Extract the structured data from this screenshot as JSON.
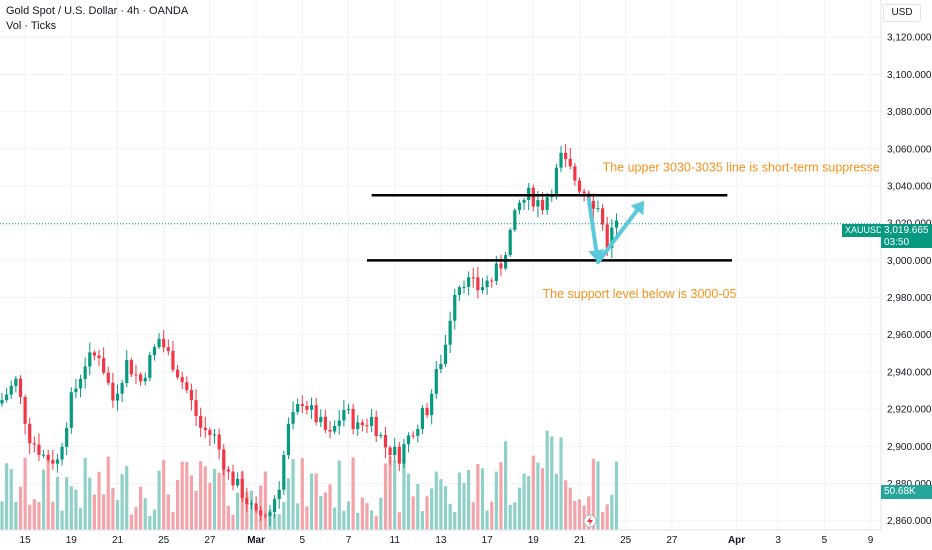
{
  "header": {
    "title": "Gold Spot / U.S. Dollar · 4h · OANDA",
    "indicator": "Vol · Ticks"
  },
  "currency_button": "USD",
  "last_price": {
    "symbol": "XAUUSD",
    "value": "3,019.665",
    "countdown": "03:50"
  },
  "volume_readout": "50.68K",
  "colors": {
    "up": "#089981",
    "down": "#f23645",
    "vol_up": "#8fd0c8",
    "vol_down": "#f4a3a8",
    "annotation_text": "#f7931a",
    "arrow": "#5bc9dc",
    "level_line": "#000000"
  },
  "chart_data": {
    "type": "candlestick",
    "symbol": "XAUUSD",
    "timeframe": "4h",
    "ylim": [
      2855,
      3140
    ],
    "y_ticks": [
      2860,
      2880,
      2900,
      2920,
      2940,
      2960,
      2980,
      3000,
      3020,
      3040,
      3060,
      3080,
      3100,
      3120
    ],
    "y_tick_labels": [
      "2,860.000",
      "2,880.000",
      "2,900.000",
      "2,920.000",
      "2,940.000",
      "2,960.000",
      "2,980.000",
      "3,000.000",
      "3,020.000",
      "3,040.000",
      "3,060.000",
      "3,080.000",
      "3,100.000",
      "3,120.000"
    ],
    "x_ticks": [
      {
        "label": "15",
        "bar": 5
      },
      {
        "label": "19",
        "bar": 15
      },
      {
        "label": "21",
        "bar": 25
      },
      {
        "label": "25",
        "bar": 35
      },
      {
        "label": "27",
        "bar": 45
      },
      {
        "label": "Mar",
        "bar": 55
      },
      {
        "label": "5",
        "bar": 65
      },
      {
        "label": "7",
        "bar": 75
      },
      {
        "label": "11",
        "bar": 85
      },
      {
        "label": "13",
        "bar": 95
      },
      {
        "label": "17",
        "bar": 105
      },
      {
        "label": "19",
        "bar": 115
      },
      {
        "label": "21",
        "bar": 125
      },
      {
        "label": "25",
        "bar": 135
      },
      {
        "label": "27",
        "bar": 145
      },
      {
        "label": "Apr",
        "bar": 159
      },
      {
        "label": "3",
        "bar": 168
      },
      {
        "label": "5",
        "bar": 178
      },
      {
        "label": "9",
        "bar": 188
      }
    ],
    "anchors": [
      [
        0,
        2925
      ],
      [
        3,
        2935
      ],
      [
        6,
        2905
      ],
      [
        9,
        2895
      ],
      [
        12,
        2892
      ],
      [
        15,
        2925
      ],
      [
        18,
        2945
      ],
      [
        21,
        2950
      ],
      [
        24,
        2925
      ],
      [
        27,
        2945
      ],
      [
        30,
        2935
      ],
      [
        34,
        2958
      ],
      [
        37,
        2945
      ],
      [
        40,
        2930
      ],
      [
        43,
        2910
      ],
      [
        46,
        2905
      ],
      [
        49,
        2885
      ],
      [
        52,
        2875
      ],
      [
        55,
        2862
      ],
      [
        58,
        2865
      ],
      [
        60,
        2880
      ],
      [
        62,
        2910
      ],
      [
        65,
        2925
      ],
      [
        68,
        2915
      ],
      [
        71,
        2905
      ],
      [
        74,
        2920
      ],
      [
        77,
        2910
      ],
      [
        80,
        2915
      ],
      [
        83,
        2900
      ],
      [
        86,
        2895
      ],
      [
        89,
        2910
      ],
      [
        92,
        2920
      ],
      [
        94,
        2938
      ],
      [
        96,
        2955
      ],
      [
        98,
        2985
      ],
      [
        100,
        2990
      ],
      [
        103,
        2985
      ],
      [
        106,
        2990
      ],
      [
        108,
        2998
      ],
      [
        110,
        3015
      ],
      [
        112,
        3030
      ],
      [
        114,
        3035
      ],
      [
        117,
        3030
      ],
      [
        119,
        3040
      ],
      [
        121,
        3055
      ],
      [
        123,
        3048
      ],
      [
        125,
        3040
      ],
      [
        127,
        3035
      ],
      [
        129,
        3028
      ],
      [
        131,
        3010
      ],
      [
        133,
        3020
      ]
    ],
    "annotations": [
      {
        "type": "hline",
        "price": 3035,
        "from_bar": 80,
        "to_bar": 157
      },
      {
        "type": "hline",
        "price": 3000,
        "from_bar": 79,
        "to_bar": 158
      },
      {
        "type": "text",
        "text": "The upper 3030-3035 line is short-term suppressed",
        "price": 3050,
        "bar": 130
      },
      {
        "type": "text",
        "text": "The support level below is 3000-05",
        "price": 2982,
        "bar": 117
      },
      {
        "type": "arrow",
        "from_bar": 127,
        "from_price": 3033,
        "to_bar": 129,
        "to_price": 2999
      },
      {
        "type": "arrow",
        "from_bar": 129,
        "from_price": 2999,
        "to_bar": 139,
        "to_price": 3032
      }
    ]
  }
}
